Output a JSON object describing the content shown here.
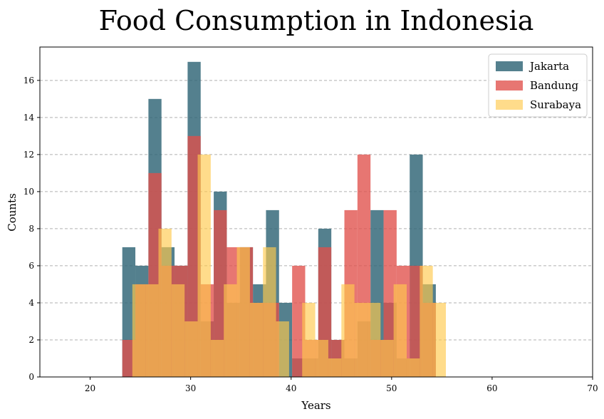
{
  "chart_data": {
    "type": "bar",
    "subtype": "overlapping-histogram",
    "title": "Food Consumption in Indonesia",
    "xlabel": "Years",
    "ylabel": "Counts",
    "xlim": [
      15,
      70
    ],
    "ylim": [
      0,
      17.8
    ],
    "xticks": [
      20,
      30,
      40,
      50,
      60,
      70
    ],
    "yticks": [
      0,
      2,
      4,
      6,
      8,
      10,
      12,
      14,
      16
    ],
    "grid": "y-dashed",
    "legend_position": "top-right",
    "series": [
      {
        "name": "Jakarta",
        "color": "#2e6475",
        "opacity": 0.82,
        "bin_width": 1.3,
        "x_start": 23.2,
        "values": [
          7,
          6,
          15,
          7,
          6,
          17,
          3,
          10,
          4,
          7,
          5,
          9,
          4,
          1,
          1,
          8,
          2,
          1,
          3,
          9,
          4,
          1,
          12,
          5
        ]
      },
      {
        "name": "Bandung",
        "color": "#e0504a",
        "opacity": 0.78,
        "bin_width": 1.3,
        "x_start": 23.2,
        "values": [
          2,
          5,
          11,
          6,
          6,
          13,
          5,
          9,
          7,
          7,
          4,
          4,
          0,
          6,
          2,
          7,
          2,
          9,
          12,
          2,
          9,
          6,
          6,
          4
        ]
      },
      {
        "name": "Surabaya",
        "color": "#ffc94d",
        "opacity": 0.65,
        "bin_width": 1.3,
        "x_start": 24.2,
        "values": [
          5,
          5,
          8,
          5,
          3,
          12,
          2,
          5,
          7,
          4,
          7,
          3,
          0,
          4,
          2,
          1,
          5,
          4,
          4,
          2,
          5,
          1,
          6,
          4
        ]
      }
    ]
  }
}
